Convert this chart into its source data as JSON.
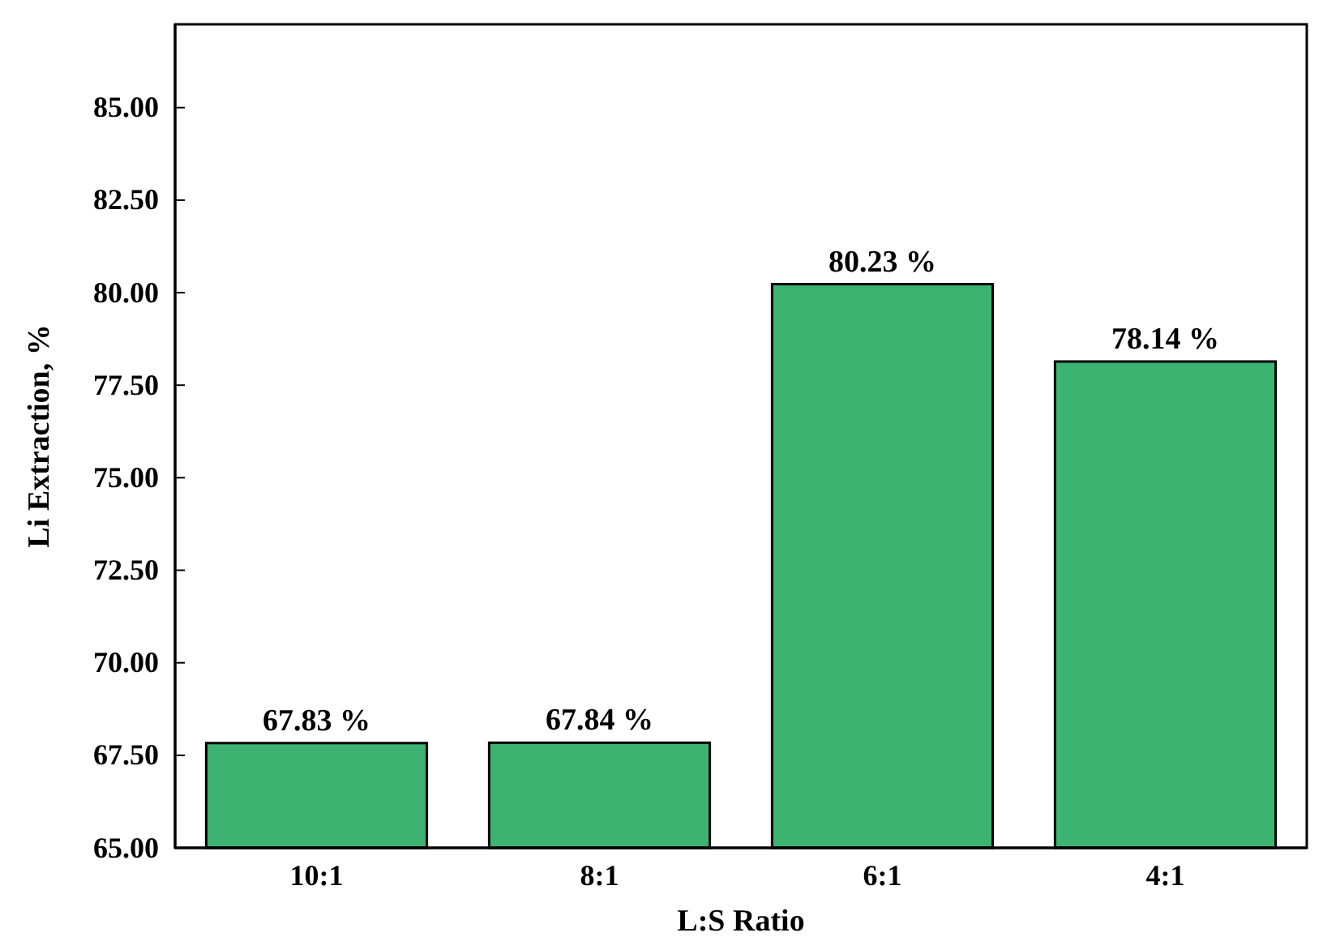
{
  "chart_data": {
    "type": "bar",
    "xlabel": "L:S Ratio",
    "ylabel": "Li Extraction, %",
    "categories": [
      "10:1",
      "8:1",
      "6:1",
      "4:1"
    ],
    "values": [
      67.83,
      67.84,
      80.23,
      78.14
    ],
    "value_labels": [
      "67.83 %",
      "67.84 %",
      "80.23 %",
      "78.14 %"
    ],
    "color": "#3cb371",
    "ylim": [
      65,
      87.25
    ],
    "yticks": [
      {
        "value": 65,
        "label": "65.00"
      },
      {
        "value": 67.5,
        "label": "67.50"
      },
      {
        "value": 70,
        "label": "70.00"
      },
      {
        "value": 72.5,
        "label": "72.50"
      },
      {
        "value": 75,
        "label": "75.00"
      },
      {
        "value": 77.5,
        "label": "77.50"
      },
      {
        "value": 80,
        "label": "80.00"
      },
      {
        "value": 82.5,
        "label": "82.50"
      },
      {
        "value": 85,
        "label": "85.00"
      }
    ],
    "grid": false
  }
}
